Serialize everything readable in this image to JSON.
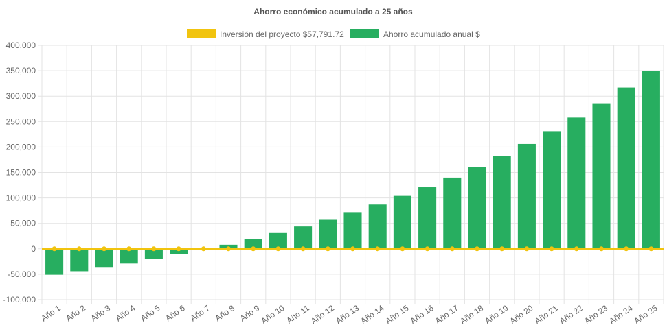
{
  "chart_data": {
    "type": "bar",
    "title": "Ahorro económico acumulado a 25 años",
    "legend_position": "top",
    "grid": true,
    "ylim": [
      -100000,
      400000
    ],
    "y_ticks": [
      400000,
      350000,
      300000,
      250000,
      200000,
      150000,
      100000,
      50000,
      0,
      -50000,
      -100000
    ],
    "y_tick_labels": [
      "400,000",
      "350,000",
      "300,000",
      "250,000",
      "200,000",
      "150,000",
      "100,000",
      "50,000",
      "0",
      "-50,000",
      "-100,000"
    ],
    "categories": [
      "Año 1",
      "Año 2",
      "Año 3",
      "Año 4",
      "Año 5",
      "Año 6",
      "Año 7",
      "Año 8",
      "Año 9",
      "Año 10",
      "Año 11",
      "Año 12",
      "Año 13",
      "Año 14",
      "Año 15",
      "Año 16",
      "Año 17",
      "Año 18",
      "Año 19",
      "Año 20",
      "Año 21",
      "Año 22",
      "Año 23",
      "Año 24",
      "Año 25"
    ],
    "series": [
      {
        "name": "Inversión del proyecto $57,791.72",
        "type": "line",
        "color": "#f1c40f",
        "values": [
          0,
          0,
          0,
          0,
          0,
          0,
          0,
          0,
          0,
          0,
          0,
          0,
          0,
          0,
          0,
          0,
          0,
          0,
          0,
          0,
          0,
          0,
          0,
          0,
          0
        ]
      },
      {
        "name": "Ahorro acumulado anual $",
        "type": "bar",
        "color": "#27ae60",
        "values": [
          -51000,
          -44000,
          -37000,
          -29000,
          -20000,
          -11000,
          -1000,
          8000,
          19000,
          31000,
          44000,
          57000,
          72000,
          87000,
          104000,
          121000,
          140000,
          161000,
          183000,
          206000,
          231000,
          258000,
          286000,
          317000,
          350000
        ]
      }
    ]
  }
}
